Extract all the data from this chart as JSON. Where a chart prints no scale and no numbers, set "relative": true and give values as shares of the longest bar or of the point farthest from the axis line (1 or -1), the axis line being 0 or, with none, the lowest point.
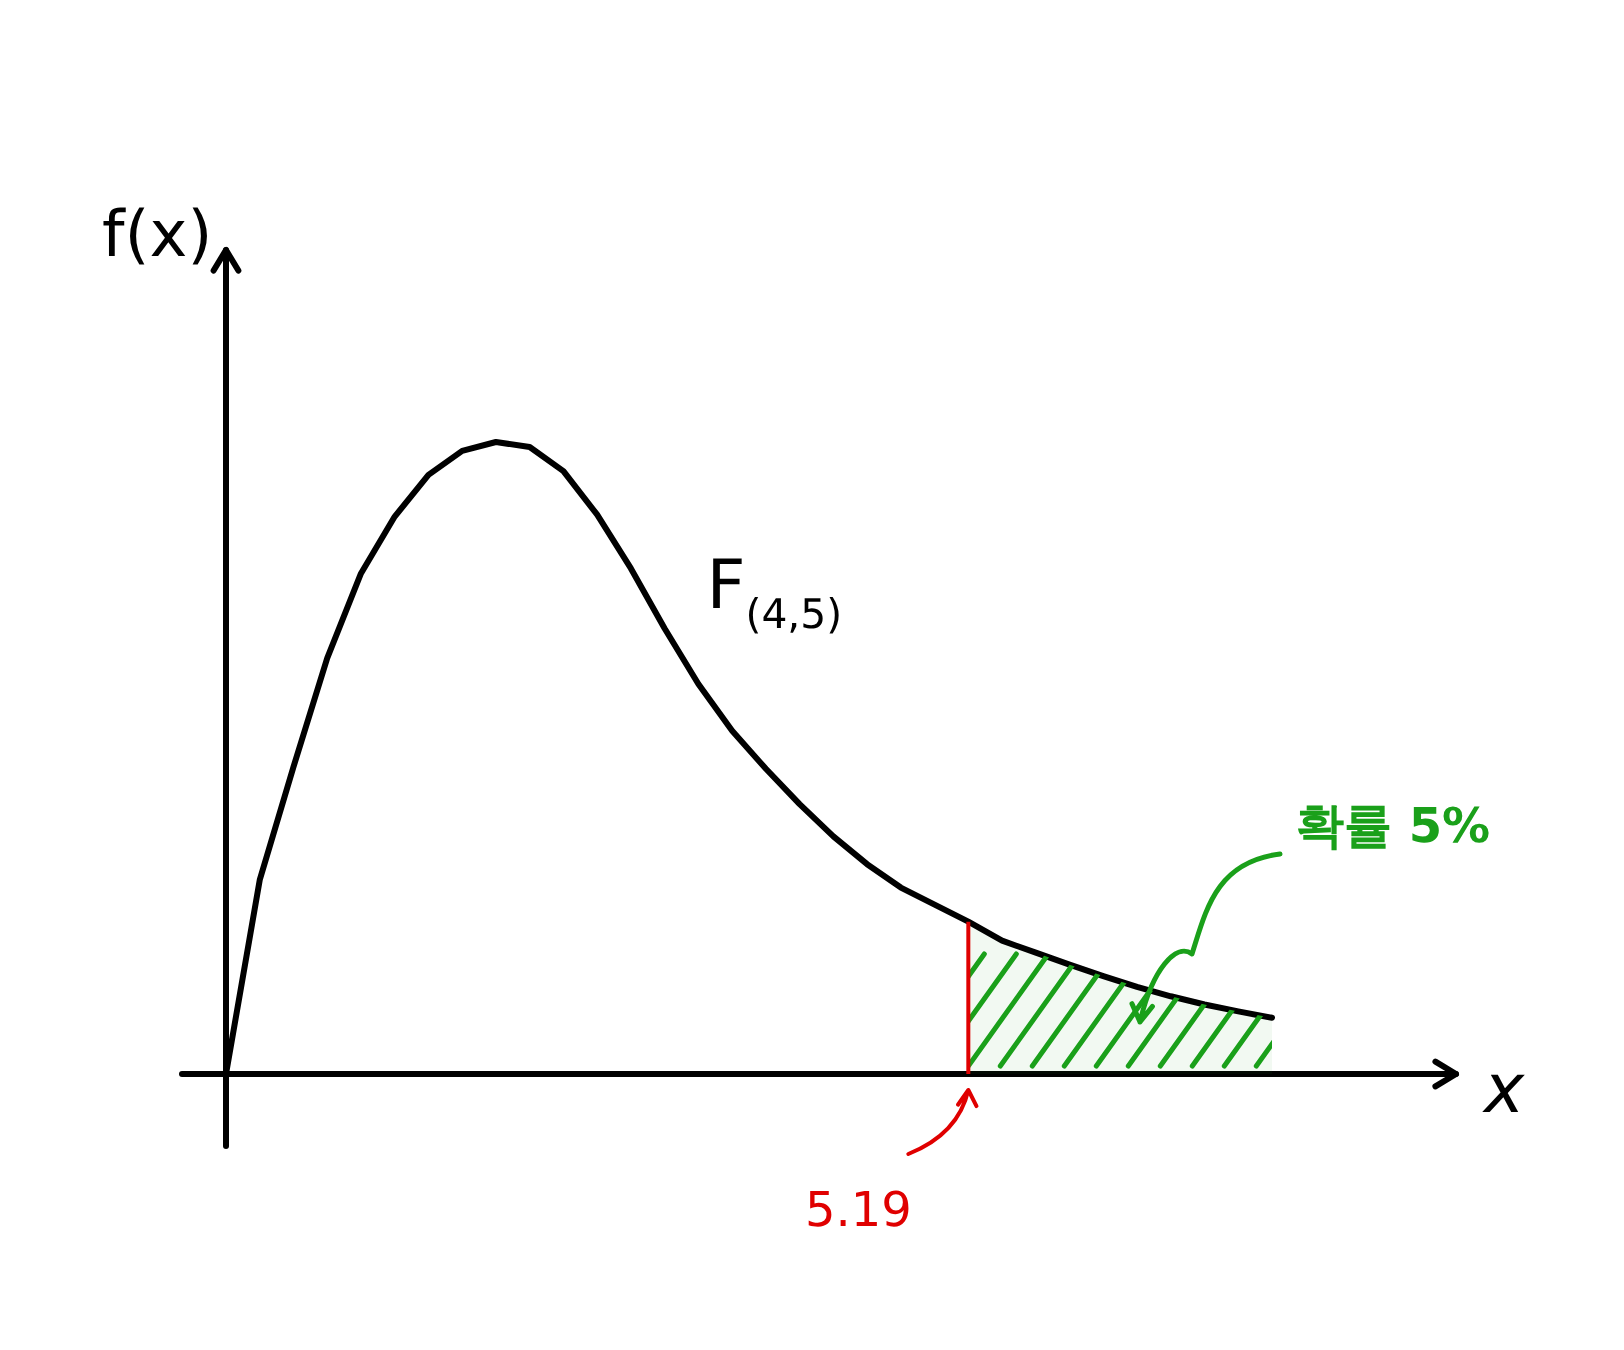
{
  "chart_data": {
    "type": "line",
    "relative": true,
    "xlabel": "x",
    "ylabel": "f(x)",
    "categories": [
      null,
      null,
      null,
      null,
      null,
      null,
      null,
      null,
      null,
      null,
      null,
      null,
      null,
      null,
      null,
      null,
      null,
      null,
      null,
      null,
      null,
      null,
      null,
      null,
      null,
      null,
      null,
      null,
      null,
      null,
      null,
      null
    ],
    "series": [
      {
        "name": "F$_{(4,5)}$",
        "color": "#000000",
        "values": [
          0,
          0.307,
          0.486,
          0.658,
          0.792,
          0.882,
          0.948,
          0.986,
          1,
          0.992,
          0.954,
          0.885,
          0.8,
          0.705,
          0.617,
          0.543,
          0.483,
          0.427,
          0.376,
          0.332,
          0.295,
          0.268,
          0.241,
          0.211,
          0.192,
          0.173,
          0.155,
          0.138,
          0.123,
          0.11,
          0.099,
          0.089
        ]
      },
      {
        "type": "area",
        "color": "#1aa01a",
        "values": [
          null,
          null,
          null,
          null,
          null,
          null,
          null,
          null,
          null,
          null,
          null,
          null,
          null,
          null,
          null,
          null,
          null,
          null,
          null,
          null,
          null,
          null,
          0.241,
          0.211,
          0.192,
          0.173,
          0.155,
          0.138,
          0.123,
          0.11,
          0.099,
          0.089
        ]
      }
    ],
    "annotations": [
      "5.19",
      "확률 5%"
    ],
    "legend": false,
    "marker": "none"
  }
}
